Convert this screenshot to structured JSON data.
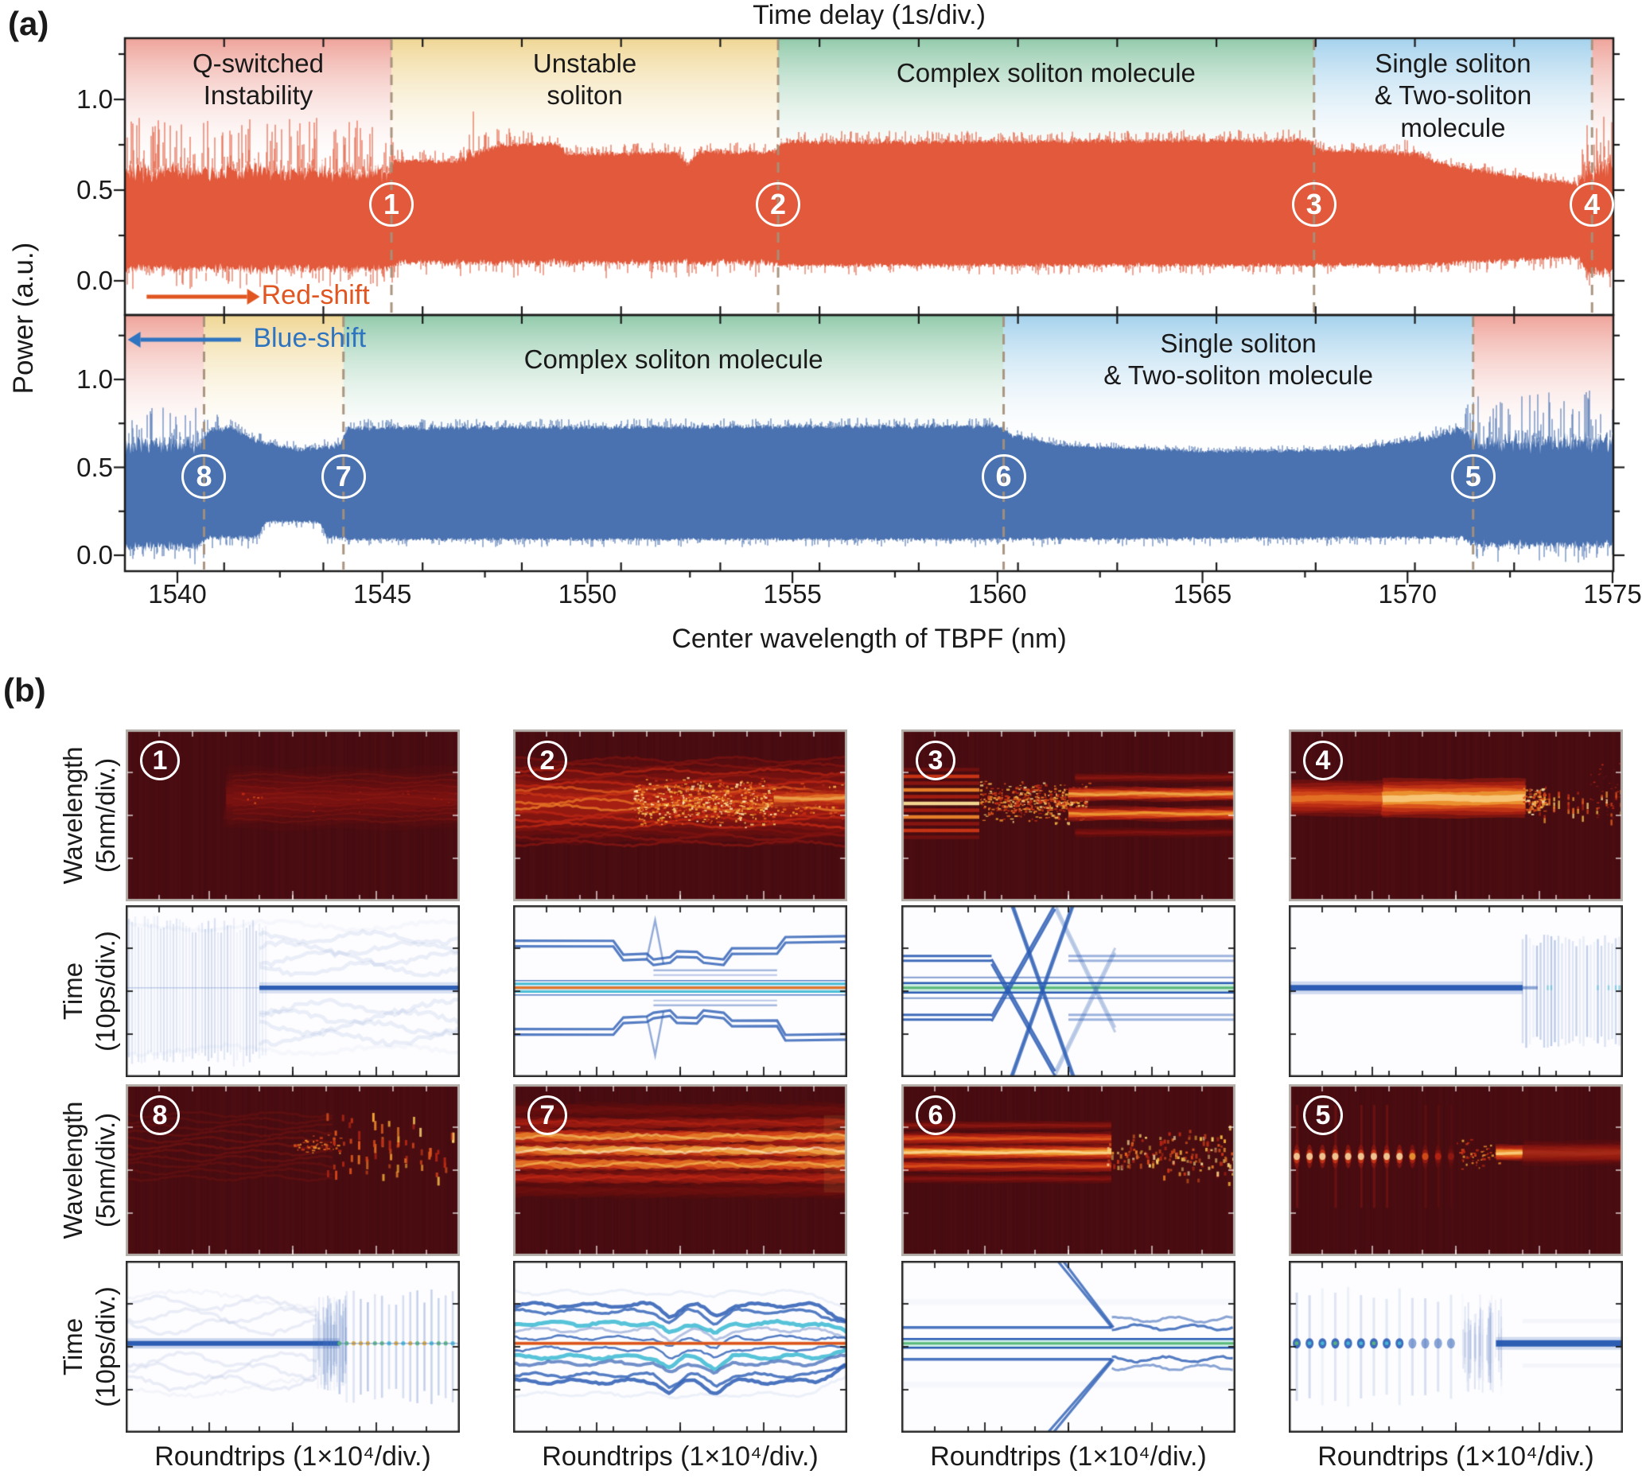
{
  "figure": {
    "panel_a_tag": "(a)",
    "panel_b_tag": "(b)"
  },
  "chart_data": [
    {
      "id": "panel-a",
      "type": "area",
      "title": "Time delay (1s/div.)",
      "xlabel": "Center wavelength of TBPF (nm)",
      "ylabel": "Power (a.u.)",
      "x_range": [
        1538.72,
        1575.02
      ],
      "x_ticks": [
        1540,
        1545,
        1550,
        1555,
        1560,
        1565,
        1570,
        1575
      ],
      "x_minor_step": 2.5,
      "y_ticks": [
        0.0,
        0.5,
        1.0
      ],
      "y_minor": [
        0.25,
        0.75,
        1.25
      ],
      "time_divisions": 15,
      "dash_color": "#a5907a",
      "regions_top": [
        {
          "label": "Q-switched\nInstability",
          "from": 1538.72,
          "to": 1545.22,
          "color": "#efa49b"
        },
        {
          "label": "Unstable\nsoliton",
          "from": 1545.22,
          "to": 1554.65,
          "color": "#f0d795"
        },
        {
          "label": "Complex soliton molecule",
          "from": 1554.65,
          "to": 1567.72,
          "color": "#93cbac"
        },
        {
          "label": "Single soliton\n& Two-soliton molecule",
          "from": 1567.72,
          "to": 1574.5,
          "color": "#a5d2ed"
        },
        {
          "label": "",
          "from": 1574.5,
          "to": 1575.02,
          "color": "#efa49b"
        }
      ],
      "regions_bottom": [
        {
          "label": "",
          "from": 1538.72,
          "to": 1540.65,
          "color": "#efa49b"
        },
        {
          "label": "",
          "from": 1540.65,
          "to": 1544.05,
          "color": "#f0d795"
        },
        {
          "label": "Complex soliton molecule",
          "from": 1544.05,
          "to": 1560.15,
          "color": "#93cbac"
        },
        {
          "label": "Single soliton\n& Two-soliton molecule",
          "from": 1560.15,
          "to": 1571.6,
          "color": "#a5d2ed"
        },
        {
          "label": "",
          "from": 1571.6,
          "to": 1575.02,
          "color": "#efa49b"
        }
      ],
      "markers_top": [
        {
          "label": "1",
          "x": 1545.22
        },
        {
          "label": "2",
          "x": 1554.65
        },
        {
          "label": "3",
          "x": 1567.72
        },
        {
          "label": "4",
          "x": 1574.5
        }
      ],
      "markers_bottom": [
        {
          "label": "8",
          "x": 1540.65
        },
        {
          "label": "7",
          "x": 1544.05
        },
        {
          "label": "6",
          "x": 1560.15
        },
        {
          "label": "5",
          "x": 1571.6
        }
      ],
      "annotations": [
        {
          "text": "Red-shift",
          "color": "#e05520",
          "panel": "top",
          "arrow_from": 1539.25,
          "arrow_to": 1541.7,
          "v": -0.088,
          "label_x": 1542.05
        },
        {
          "text": "Blue-shift",
          "color": "#2e74c0",
          "panel": "bottom",
          "arrow_from": 1541.55,
          "arrow_to": 1539.1,
          "v": 1.226,
          "label_x": 1541.85
        }
      ],
      "series": [
        {
          "name": "red-shift tuning trace",
          "panel": "top",
          "color": "#e2593b",
          "seed": 7,
          "envelope": [
            [
              1538.73,
              0.6,
              0.07,
              0.3
            ],
            [
              1545.15,
              0.6,
              0.07,
              0.3
            ],
            [
              1545.3,
              0.665,
              0.02,
              0.06
            ],
            [
              1546.9,
              0.66,
              0.02,
              0.07
            ],
            [
              1547.1,
              0.7,
              0.04,
              0.26
            ],
            [
              1547.9,
              0.75,
              0.02,
              0.1
            ],
            [
              1549.3,
              0.755,
              0.015,
              0.04
            ],
            [
              1549.5,
              0.7,
              0.02,
              0.05
            ],
            [
              1552.2,
              0.705,
              0.02,
              0.06
            ],
            [
              1552.45,
              0.64,
              0.02,
              0.04
            ],
            [
              1552.7,
              0.71,
              0.02,
              0.05
            ],
            [
              1554.55,
              0.71,
              0.02,
              0.07
            ],
            [
              1554.75,
              0.765,
              0.02,
              0.06
            ],
            [
              1567.6,
              0.775,
              0.02,
              0.06
            ],
            [
              1567.85,
              0.72,
              0.02,
              0.05
            ],
            [
              1569.4,
              0.715,
              0.02,
              0.05
            ],
            [
              1570.2,
              0.7,
              0.03,
              0.09
            ],
            [
              1570.8,
              0.645,
              0.02,
              0.05
            ],
            [
              1572.6,
              0.575,
              0.02,
              0.05
            ],
            [
              1574.15,
              0.535,
              0.02,
              0.05
            ],
            [
              1574.4,
              0.62,
              0.1,
              0.33
            ],
            [
              1575.05,
              0.62,
              0.1,
              0.33
            ]
          ],
          "baseline": [
            [
              1538.73,
              0.065,
              0.05
            ],
            [
              1545.15,
              0.065,
              0.05
            ],
            [
              1545.35,
              0.1,
              0.04
            ],
            [
              1554.55,
              0.1,
              0.04
            ],
            [
              1554.75,
              0.085,
              0.025
            ],
            [
              1570.0,
              0.085,
              0.025
            ],
            [
              1574.15,
              0.13,
              0.03
            ],
            [
              1574.4,
              0.05,
              0.05
            ],
            [
              1575.05,
              0.05,
              0.05
            ]
          ]
        },
        {
          "name": "blue-shift tuning trace",
          "panel": "bottom",
          "color": "#4a72b0",
          "seed": 13,
          "envelope": [
            [
              1538.73,
              0.63,
              0.06,
              0.26
            ],
            [
              1540.55,
              0.63,
              0.06,
              0.26
            ],
            [
              1540.75,
              0.71,
              0.03,
              0.1
            ],
            [
              1541.3,
              0.73,
              0.02,
              0.06
            ],
            [
              1541.9,
              0.65,
              0.02,
              0.05
            ],
            [
              1543.0,
              0.6,
              0.02,
              0.04
            ],
            [
              1543.95,
              0.625,
              0.02,
              0.05
            ],
            [
              1544.15,
              0.725,
              0.02,
              0.05
            ],
            [
              1560.0,
              0.735,
              0.02,
              0.05
            ],
            [
              1560.4,
              0.68,
              0.02,
              0.04
            ],
            [
              1561.6,
              0.625,
              0.015,
              0.03
            ],
            [
              1565.0,
              0.59,
              0.015,
              0.03
            ],
            [
              1568.5,
              0.6,
              0.015,
              0.03
            ],
            [
              1570.5,
              0.665,
              0.02,
              0.05
            ],
            [
              1571.3,
              0.72,
              0.03,
              0.12
            ],
            [
              1571.65,
              0.63,
              0.07,
              0.3
            ],
            [
              1575.05,
              0.65,
              0.07,
              0.3
            ]
          ],
          "baseline": [
            [
              1538.73,
              0.05,
              0.05
            ],
            [
              1540.55,
              0.05,
              0.05
            ],
            [
              1540.75,
              0.1,
              0.03
            ],
            [
              1541.95,
              0.1,
              0.03
            ],
            [
              1542.15,
              0.19,
              0.02
            ],
            [
              1543.45,
              0.19,
              0.02
            ],
            [
              1543.65,
              0.105,
              0.03
            ],
            [
              1544.15,
              0.09,
              0.02
            ],
            [
              1560.0,
              0.09,
              0.02
            ],
            [
              1571.3,
              0.1,
              0.02
            ],
            [
              1571.65,
              0.06,
              0.05
            ],
            [
              1575.05,
              0.06,
              0.05
            ]
          ]
        }
      ]
    },
    {
      "id": "panel-b",
      "type": "heatmap",
      "xlabel": "Roundtrips (1×10⁴/div.)",
      "ylabel_wavelength": "Wavelength\n(5nm/div.)",
      "ylabel_time": "Time\n(10ps/div.)",
      "cells": [
        {
          "label": "1",
          "wavelength_motif": "faint-diffuse",
          "time_motif": "streaks-then-line"
        },
        {
          "label": "2",
          "wavelength_motif": "striped-chaotic",
          "time_motif": "stepped-lines"
        },
        {
          "label": "3",
          "wavelength_motif": "stripes-to-smooth",
          "time_motif": "x-crossing"
        },
        {
          "label": "4",
          "wavelength_motif": "band-then-speckle",
          "time_motif": "band-then-comb"
        },
        {
          "label": "8",
          "wavelength_motif": "faint-then-pulses",
          "time_motif": "line-then-streaks"
        },
        {
          "label": "7",
          "wavelength_motif": "multi-stripes",
          "time_motif": "wavy-lines-kink"
        },
        {
          "label": "6",
          "wavelength_motif": "stripes-then-chaos",
          "time_motif": "molecule-branch"
        },
        {
          "label": "5",
          "wavelength_motif": "pulses-then-band",
          "time_motif": "dots-then-band"
        }
      ]
    }
  ]
}
